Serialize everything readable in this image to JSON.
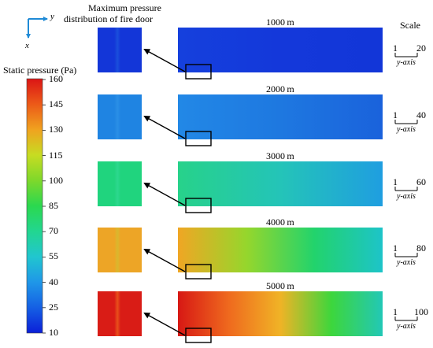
{
  "axes_indicator": {
    "y_label": "y",
    "x_label": "x"
  },
  "colorbar": {
    "title": "Static pressure (Pa)",
    "ticks": [
      "160",
      "145",
      "130",
      "115",
      "100",
      "85",
      "70",
      "55",
      "40",
      "25",
      "10"
    ],
    "gradient_stops": [
      "#0b1fd8",
      "#1560e4",
      "#1f97e8",
      "#21c6cf",
      "#22d690",
      "#2bd84f",
      "#7ed82b",
      "#c7dc22",
      "#f0a21f",
      "#ec5a18",
      "#db1515"
    ]
  },
  "header": {
    "door_title_line1": "Maximum pressure",
    "door_title_line2": "distribution of fire door",
    "scale_title": "Scale",
    "scale_axis_label": "y-axis"
  },
  "panels": [
    {
      "distance": "1000 m",
      "scale_start": "1",
      "scale_end": "20",
      "door_colors": [
        "#1336d8",
        "#1a4fdc"
      ],
      "tunnel_colors": [
        "#1540dd",
        "#1438da",
        "#1236d8"
      ]
    },
    {
      "distance": "2000 m",
      "scale_start": "1",
      "scale_end": "40",
      "door_colors": [
        "#1f84e2",
        "#2a8fe6"
      ],
      "tunnel_colors": [
        "#2288e6",
        "#1e78e0",
        "#1a62dc"
      ]
    },
    {
      "distance": "3000 m",
      "scale_start": "1",
      "scale_end": "60",
      "door_colors": [
        "#20d47e",
        "#2cd88e"
      ],
      "tunnel_colors": [
        "#27d28a",
        "#24c4b8",
        "#1f9ee0"
      ]
    },
    {
      "distance": "4000 m",
      "scale_start": "1",
      "scale_end": "80",
      "door_colors": [
        "#eda526",
        "#d9b82e"
      ],
      "tunnel_colors": [
        "#f0a624",
        "#96d62c",
        "#22d36c",
        "#1dc4c9"
      ]
    },
    {
      "distance": "5000 m",
      "scale_start": "1",
      "scale_end": "100",
      "door_colors": [
        "#d91c16",
        "#e8501a"
      ],
      "tunnel_colors": [
        "#d71814",
        "#ef6a1e",
        "#f0b326",
        "#3dd63c",
        "#22c8b6"
      ]
    }
  ]
}
